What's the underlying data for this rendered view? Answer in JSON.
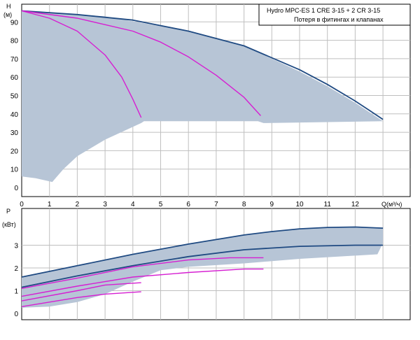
{
  "legend": {
    "line1": "Hydro MPC-ES 1 CRE 3-15  +  2 CR 3-15",
    "line2": "Потеря в фитингах и клапанах"
  },
  "colors": {
    "envelope": "#b7c5d6",
    "grid": "#bfbfbf",
    "navy": "#1f4a82",
    "magenta": "#d61fd2"
  },
  "chart_data": [
    {
      "type": "line",
      "id": "head",
      "ylabel_line1": "H",
      "ylabel_line2": "(м)",
      "xlabel": "Q(м³/ч)",
      "xlim": [
        0,
        14
      ],
      "ylim": [
        0,
        100
      ],
      "x_ticks": [
        0,
        1,
        2,
        3,
        4,
        5,
        6,
        7,
        8,
        9,
        10,
        11,
        12
      ],
      "y_ticks": [
        0,
        10,
        20,
        30,
        40,
        50,
        60,
        70,
        80,
        90
      ],
      "grid": true,
      "envelope": [
        [
          0,
          96
        ],
        [
          3,
          93
        ],
        [
          6,
          85
        ],
        [
          8,
          77
        ],
        [
          10,
          63
        ],
        [
          11,
          55
        ],
        [
          12,
          46
        ],
        [
          13,
          36
        ],
        [
          8.7,
          35
        ],
        [
          8.5,
          36
        ],
        [
          4.4,
          36
        ],
        [
          4.3,
          35
        ],
        [
          3,
          26
        ],
        [
          2,
          17
        ],
        [
          1.5,
          10
        ],
        [
          1.1,
          3
        ],
        [
          0.5,
          5
        ],
        [
          0,
          6
        ]
      ],
      "series": [
        {
          "color": "navy",
          "points": [
            [
              0,
              96
            ],
            [
              2,
              94
            ],
            [
              4,
              91
            ],
            [
              6,
              85
            ],
            [
              8,
              77
            ],
            [
              10,
              64
            ],
            [
              11,
              56
            ],
            [
              12,
              47
            ],
            [
              12.5,
              42
            ],
            [
              13,
              37
            ]
          ]
        },
        {
          "color": "magenta",
          "points": [
            [
              0,
              96
            ],
            [
              1,
              92
            ],
            [
              2,
              85
            ],
            [
              3,
              72
            ],
            [
              3.6,
              60
            ],
            [
              4,
              48
            ],
            [
              4.3,
              38
            ]
          ]
        },
        {
          "color": "magenta",
          "points": [
            [
              0,
              96
            ],
            [
              2,
              92
            ],
            [
              4,
              85
            ],
            [
              5,
              79
            ],
            [
              6,
              71
            ],
            [
              7,
              61
            ],
            [
              8,
              49
            ],
            [
              8.6,
              39
            ]
          ]
        }
      ]
    },
    {
      "type": "line",
      "id": "power",
      "ylabel_line1": "P",
      "ylabel_line2": "(кВт)",
      "xlim": [
        0,
        14
      ],
      "ylim": [
        0,
        4
      ],
      "y_ticks": [
        0,
        1,
        2,
        3
      ],
      "grid": true,
      "envelope": [
        [
          0,
          1.6
        ],
        [
          2,
          2.1
        ],
        [
          4,
          2.6
        ],
        [
          6,
          3.05
        ],
        [
          8,
          3.45
        ],
        [
          10,
          3.72
        ],
        [
          12,
          3.8
        ],
        [
          13,
          3.75
        ],
        [
          13,
          3.1
        ],
        [
          12.8,
          2.6
        ],
        [
          10,
          2.4
        ],
        [
          8,
          2.2
        ],
        [
          6,
          2.05
        ],
        [
          5,
          1.9
        ],
        [
          4,
          1.4
        ],
        [
          3,
          0.85
        ],
        [
          2,
          0.5
        ],
        [
          1,
          0.3
        ],
        [
          0,
          0.25
        ]
      ],
      "series": [
        {
          "color": "navy",
          "points": [
            [
              0,
              1.6
            ],
            [
              2,
              2.1
            ],
            [
              4,
              2.6
            ],
            [
              6,
              3.05
            ],
            [
              8,
              3.45
            ],
            [
              9,
              3.6
            ],
            [
              10,
              3.72
            ],
            [
              11,
              3.78
            ],
            [
              12,
              3.8
            ],
            [
              13,
              3.75
            ]
          ]
        },
        {
          "color": "navy",
          "points": [
            [
              0,
              1.15
            ],
            [
              2,
              1.65
            ],
            [
              4,
              2.1
            ],
            [
              6,
              2.5
            ],
            [
              8,
              2.8
            ],
            [
              10,
              2.95
            ],
            [
              12,
              3.0
            ],
            [
              13,
              3.0
            ]
          ]
        },
        {
          "color": "magenta",
          "points": [
            [
              0,
              1.1
            ],
            [
              2,
              1.55
            ],
            [
              4,
              2.05
            ],
            [
              6,
              2.35
            ],
            [
              7.5,
              2.45
            ],
            [
              8.7,
              2.45
            ]
          ]
        },
        {
          "color": "magenta",
          "points": [
            [
              0,
              0.75
            ],
            [
              2,
              1.2
            ],
            [
              4,
              1.6
            ],
            [
              6,
              1.8
            ],
            [
              8,
              1.95
            ],
            [
              8.7,
              1.95
            ]
          ]
        },
        {
          "color": "magenta",
          "points": [
            [
              0,
              0.55
            ],
            [
              2,
              1.0
            ],
            [
              3,
              1.25
            ],
            [
              4.3,
              1.35
            ]
          ]
        },
        {
          "color": "magenta",
          "points": [
            [
              0,
              0.3
            ],
            [
              2,
              0.7
            ],
            [
              3,
              0.85
            ],
            [
              4.3,
              0.95
            ]
          ]
        }
      ]
    }
  ]
}
